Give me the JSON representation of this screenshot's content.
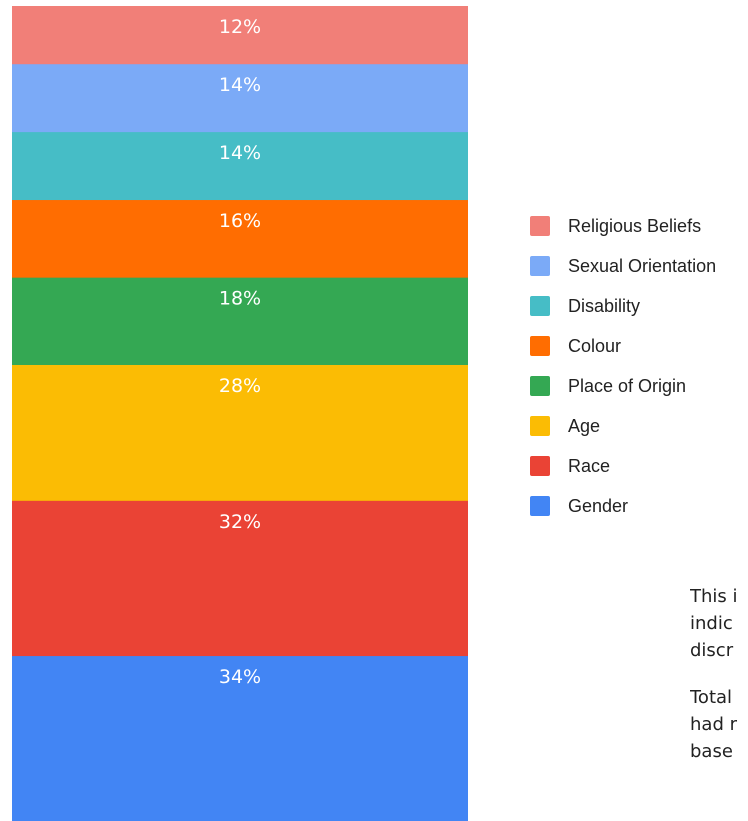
{
  "chart_data": {
    "type": "bar",
    "stacked": true,
    "orientation": "vertical",
    "segments": [
      {
        "name": "Religious Beliefs",
        "value": 12,
        "label": "12%",
        "color": "#f17f78"
      },
      {
        "name": "Sexual Orientation",
        "value": 14,
        "label": "14%",
        "color": "#7baaf7"
      },
      {
        "name": "Disability",
        "value": 14,
        "label": "14%",
        "color": "#46bdc6"
      },
      {
        "name": "Colour",
        "value": 16,
        "label": "16%",
        "color": "#ff6d01"
      },
      {
        "name": "Place of Origin",
        "value": 18,
        "label": "18%",
        "color": "#34a853"
      },
      {
        "name": "Age",
        "value": 28,
        "label": "28%",
        "color": "#fbbc04"
      },
      {
        "name": "Race",
        "value": 32,
        "label": "32%",
        "color": "#ea4335"
      },
      {
        "name": "Gender",
        "value": 34,
        "label": "34%",
        "color": "#4285f4"
      }
    ],
    "legend_position": "right"
  },
  "note": {
    "paragraph1": [
      "This i",
      "indic",
      "discr"
    ],
    "paragraph2": [
      "Total",
      "had r",
      "base"
    ]
  }
}
